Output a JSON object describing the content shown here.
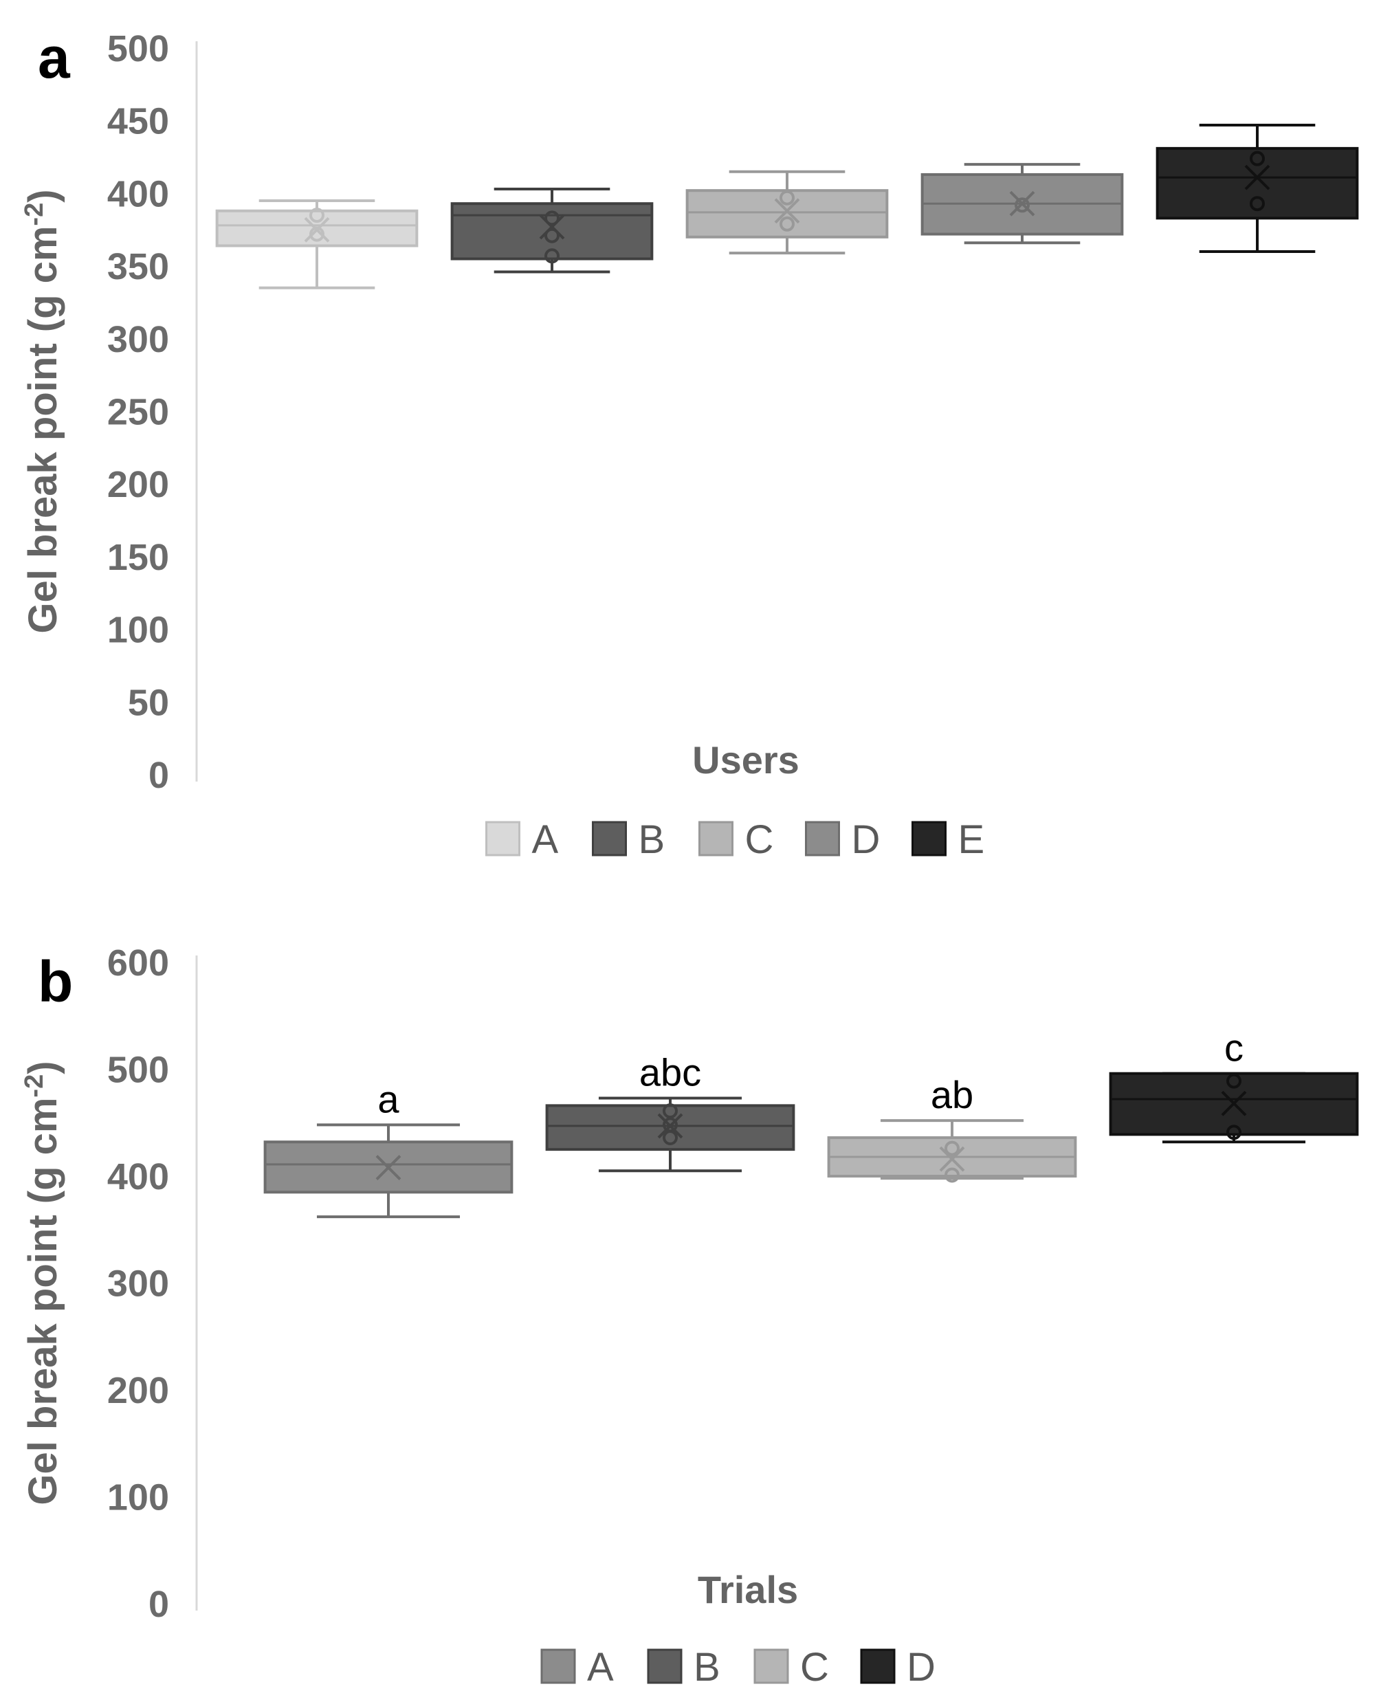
{
  "figure": {
    "panel_a_letter": "a",
    "panel_b_letter": "b"
  },
  "chart_data": [
    {
      "type": "boxplot",
      "panel": "a",
      "ylabel": "Gel break point (g cm",
      "ylabel_sup": "-2",
      "ylabel_end": ")",
      "xlabel": "Users",
      "ylim": [
        0,
        500
      ],
      "yticks": [
        "0",
        "50",
        "100",
        "150",
        "200",
        "250",
        "300",
        "350",
        "400",
        "450",
        "500"
      ],
      "legend_position": "bottom",
      "grid": false,
      "series": [
        {
          "name": "A",
          "color": "#d9d9d9",
          "edge": "#bfbfbf",
          "min": 335,
          "q1": 364,
          "median": 378,
          "q3": 388,
          "max": 395,
          "mean": 375,
          "points": [
            385,
            372
          ]
        },
        {
          "name": "B",
          "color": "#5e5e5e",
          "edge": "#404040",
          "min": 346,
          "q1": 355,
          "median": 385,
          "q3": 393,
          "max": 403,
          "mean": 377,
          "points": [
            383,
            371,
            357
          ]
        },
        {
          "name": "C",
          "color": "#b5b5b5",
          "edge": "#999999",
          "min": 359,
          "q1": 370,
          "median": 387,
          "q3": 402,
          "max": 415,
          "mean": 388,
          "points": [
            397,
            379
          ]
        },
        {
          "name": "D",
          "color": "#8c8c8c",
          "edge": "#6e6e6e",
          "min": 366,
          "q1": 372,
          "median": 393,
          "q3": 413,
          "max": 420,
          "mean": 393,
          "points": [
            392
          ]
        },
        {
          "name": "E",
          "color": "#262626",
          "edge": "#111111",
          "min": 360,
          "q1": 383,
          "median": 411,
          "q3": 431,
          "max": 447,
          "mean": 411,
          "points": [
            424,
            393
          ]
        }
      ]
    },
    {
      "type": "boxplot",
      "panel": "b",
      "ylabel": "Gel break point (g cm",
      "ylabel_sup": "-2",
      "ylabel_end": ")",
      "xlabel": "Trials",
      "ylim": [
        0,
        600
      ],
      "yticks": [
        "0",
        "100",
        "200",
        "300",
        "400",
        "500",
        "600"
      ],
      "legend_position": "bottom",
      "grid": false,
      "series": [
        {
          "name": "A",
          "color": "#8c8c8c",
          "edge": "#6e6e6e",
          "min": 362,
          "q1": 385,
          "median": 411,
          "q3": 432,
          "max": 448,
          "mean": 408,
          "points": [],
          "label": "a"
        },
        {
          "name": "B",
          "color": "#5e5e5e",
          "edge": "#404040",
          "min": 405,
          "q1": 425,
          "median": 447,
          "q3": 466,
          "max": 473,
          "mean": 447,
          "points": [
            461,
            448,
            436
          ],
          "label": "abc"
        },
        {
          "name": "C",
          "color": "#b5b5b5",
          "edge": "#999999",
          "min": 398,
          "q1": 400,
          "median": 418,
          "q3": 436,
          "max": 452,
          "mean": 416,
          "points": [
            426,
            401
          ],
          "label": "ab"
        },
        {
          "name": "D",
          "color": "#262626",
          "edge": "#111111",
          "min": 432,
          "q1": 439,
          "median": 472,
          "q3": 496,
          "max": 496,
          "mean": 468,
          "points": [
            489,
            441
          ],
          "label": "c"
        }
      ]
    }
  ]
}
